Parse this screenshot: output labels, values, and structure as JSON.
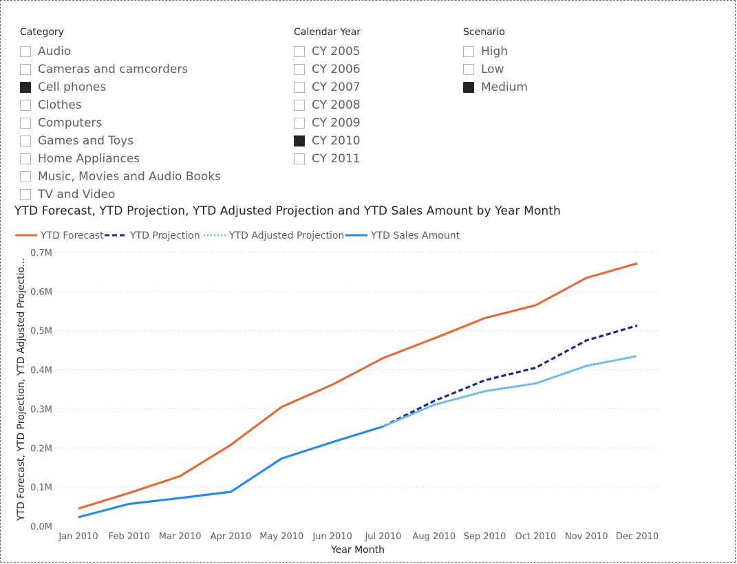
{
  "slicers": {
    "category": {
      "title": "Category",
      "items": [
        {
          "label": "Audio",
          "checked": false
        },
        {
          "label": "Cameras and camcorders",
          "checked": false
        },
        {
          "label": "Cell phones",
          "checked": true
        },
        {
          "label": "Clothes",
          "checked": false
        },
        {
          "label": "Computers",
          "checked": false
        },
        {
          "label": "Games and Toys",
          "checked": false
        },
        {
          "label": "Home Appliances",
          "checked": false
        },
        {
          "label": "Music, Movies and Audio Books",
          "checked": false
        },
        {
          "label": "TV and Video",
          "checked": false
        }
      ]
    },
    "calendar_year": {
      "title": "Calendar Year",
      "items": [
        {
          "label": "CY 2005",
          "checked": false
        },
        {
          "label": "CY 2006",
          "checked": false
        },
        {
          "label": "CY 2007",
          "checked": false
        },
        {
          "label": "CY 2008",
          "checked": false
        },
        {
          "label": "CY 2009",
          "checked": false
        },
        {
          "label": "CY 2010",
          "checked": true
        },
        {
          "label": "CY 2011",
          "checked": false
        }
      ]
    },
    "scenario": {
      "title": "Scenario",
      "items": [
        {
          "label": "High",
          "checked": false
        },
        {
          "label": "Low",
          "checked": false
        },
        {
          "label": "Medium",
          "checked": true
        }
      ]
    }
  },
  "colors": {
    "forecast": "#e06d3c",
    "projection": "#1a2a8a",
    "adjusted_projection": "#6cb8f0",
    "sales": "#2b8ae6",
    "checked": "#252423"
  },
  "chart_data": {
    "type": "line",
    "title": "YTD Forecast, YTD Projection, YTD Adjusted Projection and YTD Sales Amount by Year Month",
    "xlabel": "Year Month",
    "ylabel": "YTD Forecast, YTD Projection, YTD Adjusted Projectio...",
    "categories": [
      "Jan 2010",
      "Feb 2010",
      "Mar 2010",
      "Apr 2010",
      "May 2010",
      "Jun 2010",
      "Jul 2010",
      "Aug 2010",
      "Sep 2010",
      "Oct 2010",
      "Nov 2010",
      "Dec 2010"
    ],
    "yticks": [
      "0.0M",
      "0.1M",
      "0.2M",
      "0.3M",
      "0.4M",
      "0.5M",
      "0.6M",
      "0.7M"
    ],
    "ylim": [
      0,
      0.7
    ],
    "grid": true,
    "legend_position": "top-left",
    "series": [
      {
        "name": "YTD Forecast",
        "style": "solid",
        "color_key": "forecast",
        "values": [
          0.045,
          0.085,
          0.128,
          0.208,
          0.305,
          0.362,
          0.43,
          0.48,
          0.532,
          0.565,
          0.635,
          0.672
        ]
      },
      {
        "name": "YTD Projection",
        "style": "dashed",
        "color_key": "projection",
        "values": [
          null,
          null,
          null,
          null,
          null,
          null,
          0.255,
          0.32,
          0.373,
          0.405,
          0.475,
          0.513
        ]
      },
      {
        "name": "YTD Adjusted Projection",
        "style": "dotted",
        "color_key": "adjusted_projection",
        "values": [
          null,
          null,
          null,
          null,
          null,
          null,
          0.255,
          0.31,
          0.345,
          0.365,
          0.41,
          0.435
        ]
      },
      {
        "name": "YTD Sales Amount",
        "style": "solid",
        "color_key": "sales",
        "values": [
          0.023,
          0.057,
          0.072,
          0.088,
          0.173,
          0.215,
          0.255,
          null,
          null,
          null,
          null,
          null
        ]
      }
    ]
  }
}
